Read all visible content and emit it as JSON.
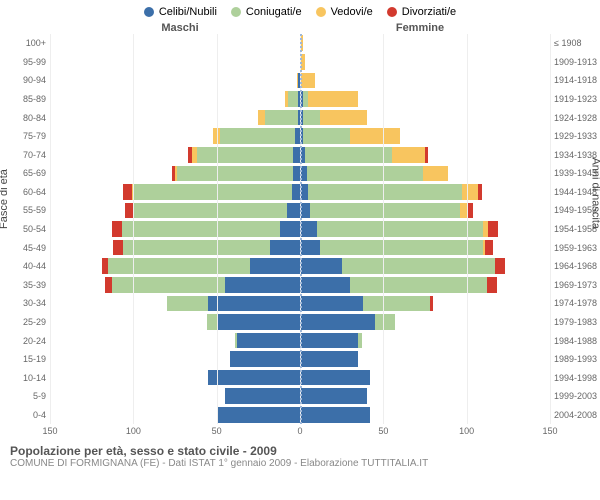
{
  "chart_type": "population-pyramid",
  "legend": [
    {
      "label": "Celibi/Nubili",
      "color": "#3c6fa9"
    },
    {
      "label": "Coniugati/e",
      "color": "#aed09b"
    },
    {
      "label": "Vedovi/e",
      "color": "#f8c55f"
    },
    {
      "label": "Divorziati/e",
      "color": "#d23a2e"
    }
  ],
  "header_left": "Maschi",
  "header_right": "Femmine",
  "axis_left_title": "Fasce di età",
  "axis_right_title": "Anni di nascita",
  "x_max": 150,
  "x_ticks": [
    150,
    100,
    50,
    0,
    50,
    100,
    150
  ],
  "footer_title": "Popolazione per età, sesso e stato civile - 2009",
  "footer_sub": "COMUNE DI FORMIGNANA (FE) - Dati ISTAT 1° gennaio 2009 - Elaborazione TUTTITALIA.IT",
  "colors": {
    "celibi": "#3c6fa9",
    "coniugati": "#aed09b",
    "vedovi": "#f8c55f",
    "divorziati": "#d23a2e",
    "grid": "#eeeeee",
    "center": "#9fb8d9",
    "bg": "#ffffff"
  },
  "rows": [
    {
      "age": "100+",
      "birth": "≤ 1908",
      "m": [
        0,
        0,
        0,
        0
      ],
      "f": [
        0,
        0,
        2,
        0
      ]
    },
    {
      "age": "95-99",
      "birth": "1909-1913",
      "m": [
        0,
        0,
        0,
        0
      ],
      "f": [
        0,
        0,
        3,
        0
      ]
    },
    {
      "age": "90-94",
      "birth": "1914-1918",
      "m": [
        1,
        0,
        1,
        0
      ],
      "f": [
        0,
        0,
        9,
        0
      ]
    },
    {
      "age": "85-89",
      "birth": "1919-1923",
      "m": [
        1,
        6,
        2,
        0
      ],
      "f": [
        2,
        3,
        30,
        0
      ]
    },
    {
      "age": "80-84",
      "birth": "1924-1928",
      "m": [
        1,
        20,
        4,
        0
      ],
      "f": [
        2,
        10,
        28,
        0
      ]
    },
    {
      "age": "75-79",
      "birth": "1929-1933",
      "m": [
        3,
        45,
        4,
        0
      ],
      "f": [
        2,
        28,
        30,
        0
      ]
    },
    {
      "age": "70-74",
      "birth": "1934-1938",
      "m": [
        4,
        58,
        3,
        2
      ],
      "f": [
        3,
        52,
        20,
        2
      ]
    },
    {
      "age": "65-69",
      "birth": "1939-1943",
      "m": [
        4,
        70,
        1,
        2
      ],
      "f": [
        4,
        70,
        15,
        0
      ]
    },
    {
      "age": "60-64",
      "birth": "1944-1948",
      "m": [
        5,
        95,
        1,
        5
      ],
      "f": [
        5,
        92,
        10,
        2
      ]
    },
    {
      "age": "55-59",
      "birth": "1949-1953",
      "m": [
        8,
        92,
        0,
        5
      ],
      "f": [
        6,
        90,
        5,
        3
      ]
    },
    {
      "age": "50-54",
      "birth": "1954-1958",
      "m": [
        12,
        95,
        0,
        6
      ],
      "f": [
        10,
        100,
        3,
        6
      ]
    },
    {
      "age": "45-49",
      "birth": "1959-1963",
      "m": [
        18,
        88,
        0,
        6
      ],
      "f": [
        12,
        98,
        1,
        5
      ]
    },
    {
      "age": "40-44",
      "birth": "1964-1968",
      "m": [
        30,
        85,
        0,
        4
      ],
      "f": [
        25,
        92,
        0,
        6
      ]
    },
    {
      "age": "35-39",
      "birth": "1969-1973",
      "m": [
        45,
        68,
        0,
        4
      ],
      "f": [
        30,
        82,
        0,
        6
      ]
    },
    {
      "age": "30-34",
      "birth": "1974-1978",
      "m": [
        55,
        25,
        0,
        0
      ],
      "f": [
        38,
        40,
        0,
        2
      ]
    },
    {
      "age": "25-29",
      "birth": "1979-1983",
      "m": [
        50,
        6,
        0,
        0
      ],
      "f": [
        45,
        12,
        0,
        0
      ]
    },
    {
      "age": "20-24",
      "birth": "1984-1988",
      "m": [
        38,
        1,
        0,
        0
      ],
      "f": [
        35,
        2,
        0,
        0
      ]
    },
    {
      "age": "15-19",
      "birth": "1989-1993",
      "m": [
        42,
        0,
        0,
        0
      ],
      "f": [
        35,
        0,
        0,
        0
      ]
    },
    {
      "age": "10-14",
      "birth": "1994-1998",
      "m": [
        55,
        0,
        0,
        0
      ],
      "f": [
        42,
        0,
        0,
        0
      ]
    },
    {
      "age": "5-9",
      "birth": "1999-2003",
      "m": [
        45,
        0,
        0,
        0
      ],
      "f": [
        40,
        0,
        0,
        0
      ]
    },
    {
      "age": "0-4",
      "birth": "2004-2008",
      "m": [
        50,
        0,
        0,
        0
      ],
      "f": [
        42,
        0,
        0,
        0
      ]
    }
  ]
}
